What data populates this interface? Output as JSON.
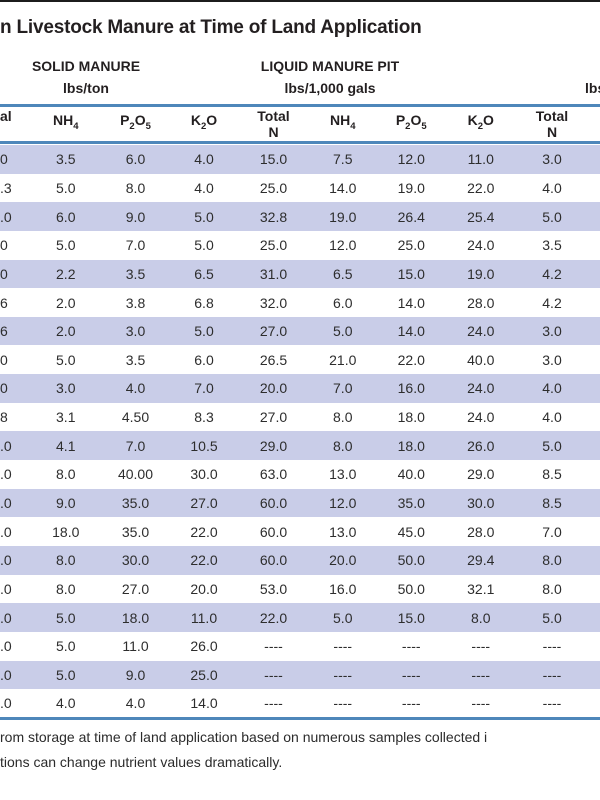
{
  "page": {
    "title": "n Livestock Manure at Time of Land Application",
    "footnote_line1": "rom storage at time of land application based on numerous samples collected i",
    "footnote_line2": "tions can change nutrient values dramatically."
  },
  "groups": {
    "solid": {
      "name": "SOLID MANURE",
      "unit": "lbs/ton"
    },
    "liquid_pit": {
      "name": "LIQUID MANURE PIT",
      "unit": "lbs/1,000 gals"
    },
    "right_edge_unit_fragment": "lbs"
  },
  "table": {
    "header_fragment": "al",
    "headers": {
      "nh4": {
        "b1": "NH",
        "s1": "4"
      },
      "p2o5": {
        "b1": "P",
        "s1": "2",
        "b2": "O",
        "s2": "5"
      },
      "k2o": {
        "b1": "K",
        "s1": "2",
        "b2": "O"
      },
      "total": {
        "line1": "Total",
        "line2": "N"
      }
    },
    "rows": [
      [
        "0",
        "3.5",
        "6.0",
        "4.0",
        "15.0",
        "7.5",
        "12.0",
        "11.0",
        "3.0"
      ],
      [
        ".3",
        "5.0",
        "8.0",
        "4.0",
        "25.0",
        "14.0",
        "19.0",
        "22.0",
        "4.0"
      ],
      [
        ".0",
        "6.0",
        "9.0",
        "5.0",
        "32.8",
        "19.0",
        "26.4",
        "25.4",
        "5.0"
      ],
      [
        "0",
        "5.0",
        "7.0",
        "5.0",
        "25.0",
        "12.0",
        "25.0",
        "24.0",
        "3.5"
      ],
      [
        "0",
        "2.2",
        "3.5",
        "6.5",
        "31.0",
        "6.5",
        "15.0",
        "19.0",
        "4.2"
      ],
      [
        "6",
        "2.0",
        "3.8",
        "6.8",
        "32.0",
        "6.0",
        "14.0",
        "28.0",
        "4.2"
      ],
      [
        "6",
        "2.0",
        "3.0",
        "5.0",
        "27.0",
        "5.0",
        "14.0",
        "24.0",
        "3.0"
      ],
      [
        "0",
        "5.0",
        "3.5",
        "6.0",
        "26.5",
        "21.0",
        "22.0",
        "40.0",
        "3.0"
      ],
      [
        "0",
        "3.0",
        "4.0",
        "7.0",
        "20.0",
        "7.0",
        "16.0",
        "24.0",
        "4.0"
      ],
      [
        "8",
        "3.1",
        "4.50",
        "8.3",
        "27.0",
        "8.0",
        "18.0",
        "24.0",
        "4.0"
      ],
      [
        ".0",
        "4.1",
        "7.0",
        "10.5",
        "29.0",
        "8.0",
        "18.0",
        "26.0",
        "5.0"
      ],
      [
        ".0",
        "8.0",
        "40.00",
        "30.0",
        "63.0",
        "13.0",
        "40.0",
        "29.0",
        "8.5"
      ],
      [
        ".0",
        "9.0",
        "35.0",
        "27.0",
        "60.0",
        "12.0",
        "35.0",
        "30.0",
        "8.5"
      ],
      [
        ".0",
        "18.0",
        "35.0",
        "22.0",
        "60.0",
        "13.0",
        "45.0",
        "28.0",
        "7.0"
      ],
      [
        ".0",
        "8.0",
        "30.0",
        "22.0",
        "60.0",
        "20.0",
        "50.0",
        "29.4",
        "8.0"
      ],
      [
        ".0",
        "8.0",
        "27.0",
        "20.0",
        "53.0",
        "16.0",
        "50.0",
        "32.1",
        "8.0"
      ],
      [
        ".0",
        "5.0",
        "18.0",
        "11.0",
        "22.0",
        "5.0",
        "15.0",
        "8.0",
        "5.0"
      ],
      [
        ".0",
        "5.0",
        "11.0",
        "26.0",
        "----",
        "----",
        "----",
        "----",
        "----"
      ],
      [
        ".0",
        "5.0",
        "9.0",
        "25.0",
        "----",
        "----",
        "----",
        "----",
        "----"
      ],
      [
        ".0",
        "4.0",
        "4.0",
        "14.0",
        "----",
        "----",
        "----",
        "----",
        "----"
      ]
    ]
  },
  "colors": {
    "stripe": "#c9cde8",
    "rule_blue": "#4e87ba",
    "rule_dark": "#1c1c1c",
    "text": "#262626"
  }
}
